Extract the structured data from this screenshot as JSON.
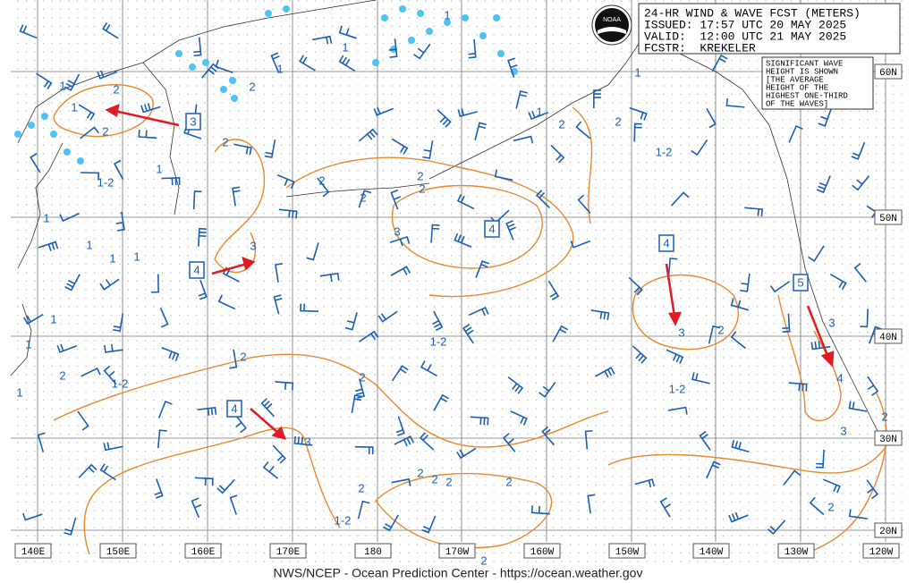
{
  "header": {
    "lines": [
      "24-HR WIND & WAVE FCST (METERS)",
      "ISSUED: 17:57 UTC 20 MAY 2025",
      "VALID:  12:00 UTC 21 MAY 2025",
      "FCSTR:  KREKELER"
    ]
  },
  "logo": "NOAA",
  "note": {
    "lines": [
      "SIGNIFICANT WAVE",
      "HEIGHT IS SHOWN",
      "[THE AVERAGE",
      "HEIGHT OF THE",
      "HIGHEST ONE-THIRD",
      "OF THE WAVES]"
    ]
  },
  "longitude_labels": [
    "140E",
    "150E",
    "160E",
    "170E",
    "180",
    "170W",
    "160W",
    "150W",
    "140W",
    "130W",
    "120W"
  ],
  "latitude_labels": [
    "60N",
    "50N",
    "40N",
    "30N",
    "20N"
  ],
  "boxed_labels": [
    "3",
    "4",
    "4",
    "4",
    "5",
    "4"
  ],
  "contour_labels": [
    "1",
    "1",
    "2",
    "2",
    "1-2",
    "1",
    "1",
    "1",
    "1",
    "1",
    "2",
    "2",
    "1",
    "1",
    "1",
    "3",
    "2",
    "2",
    "2",
    "2",
    "3",
    "1",
    "2",
    "1",
    "1-2",
    "3",
    "2",
    "1-2",
    "1-2",
    "1",
    "1",
    "1",
    "2",
    "2",
    "2",
    "3",
    "2",
    "2",
    "2",
    "2",
    "2",
    "1-2",
    "2",
    "1-2",
    "3",
    "4",
    "3",
    "2",
    "2",
    "2"
  ],
  "footer": "NWS/NCEP - Ocean Prediction Center - https://ocean.weather.gov"
}
